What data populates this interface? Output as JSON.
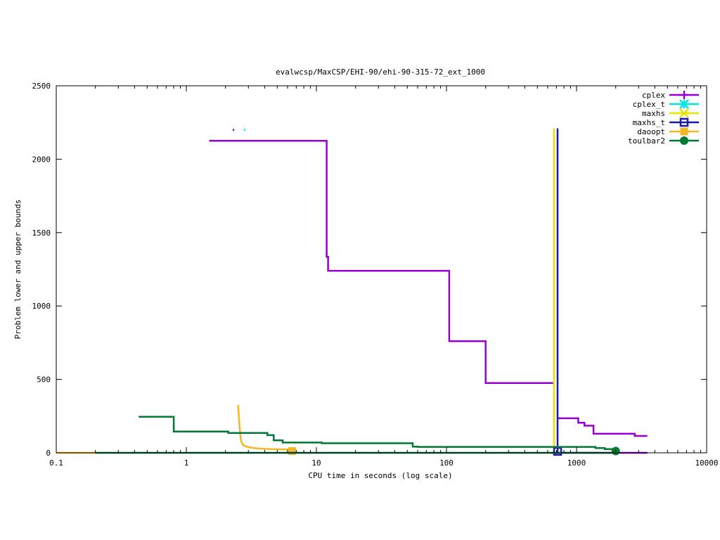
{
  "chart_data": {
    "type": "line",
    "title": "evalwcsp/MaxCSP/EHI-90/ehi-90-315-72_ext_1000",
    "xlabel": "CPU time in seconds (log scale)",
    "ylabel": "Problem lower and upper bounds",
    "x_scale": "log",
    "xlim": [
      0.1,
      10000
    ],
    "ylim": [
      0,
      2500
    ],
    "x_ticks": [
      {
        "value": 0.1,
        "label": "0.1"
      },
      {
        "value": 1,
        "label": "1"
      },
      {
        "value": 10,
        "label": "10"
      },
      {
        "value": 100,
        "label": "100"
      },
      {
        "value": 1000,
        "label": "1000"
      },
      {
        "value": 10000,
        "label": "10000"
      }
    ],
    "y_ticks": [
      {
        "value": 0,
        "label": "0"
      },
      {
        "value": 500,
        "label": "500"
      },
      {
        "value": 1000,
        "label": "1000"
      },
      {
        "value": 1500,
        "label": "1500"
      },
      {
        "value": 2000,
        "label": "2000"
      },
      {
        "value": 2500,
        "label": "2500"
      }
    ],
    "grid": false,
    "legend_position": "top-right",
    "series": [
      {
        "name": "cplex",
        "color": "#9400d3",
        "marker": "plus",
        "lines": [
          [
            [
              1.5,
              2125
            ],
            [
              12,
              2125
            ],
            [
              12,
              1335
            ],
            [
              12.3,
              1335
            ],
            [
              12.3,
              1240
            ],
            [
              105,
              1240
            ],
            [
              105,
              760
            ],
            [
              200,
              760
            ],
            [
              200,
              475
            ],
            [
              680,
              475
            ]
          ],
          [
            [
              715,
              235
            ],
            [
              1030,
              235
            ],
            [
              1030,
              205
            ],
            [
              1150,
              205
            ],
            [
              1150,
              185
            ],
            [
              1350,
              185
            ],
            [
              1350,
              130
            ],
            [
              2800,
              130
            ],
            [
              2800,
              115
            ],
            [
              3500,
              115
            ]
          ],
          [
            [
              650,
              0
            ],
            [
              3500,
              0
            ]
          ]
        ],
        "points": [
          [
            2.3,
            2200
          ]
        ]
      },
      {
        "name": "cplex_t",
        "color": "#00e5e5",
        "marker": "cross",
        "lines": [],
        "points": [
          [
            2.8,
            2200
          ]
        ]
      },
      {
        "name": "maxhs",
        "color": "#e5e500",
        "marker": "x",
        "lines": [
          [
            [
              670,
              2210
            ],
            [
              670,
              0
            ]
          ]
        ],
        "points": []
      },
      {
        "name": "maxhs_t",
        "color": "#1a1aaa",
        "marker": "square",
        "lines": [
          [
            [
              715,
              2210
            ],
            [
              715,
              0
            ]
          ]
        ],
        "points": [
          [
            715,
            10
          ]
        ]
      },
      {
        "name": "daoopt",
        "color": "#f5b623",
        "marker": "filled-square",
        "lines": [
          [
            [
              2.5,
              325
            ],
            [
              2.55,
              210
            ],
            [
              2.6,
              120
            ],
            [
              2.65,
              75
            ],
            [
              2.75,
              50
            ],
            [
              3.0,
              38
            ],
            [
              3.5,
              30
            ],
            [
              4.5,
              25
            ],
            [
              6.5,
              22
            ]
          ],
          [
            [
              0.1,
              0
            ],
            [
              0.2,
              0
            ]
          ]
        ],
        "points": [
          [
            6.5,
            12
          ]
        ]
      },
      {
        "name": "toulbar2",
        "color": "#007a33",
        "marker": "filled-circle",
        "lines": [
          [
            [
              0.43,
              245
            ],
            [
              0.8,
              245
            ],
            [
              0.8,
              145
            ],
            [
              2.1,
              145
            ],
            [
              2.1,
              135
            ],
            [
              4.2,
              135
            ],
            [
              4.2,
              120
            ],
            [
              4.7,
              120
            ],
            [
              4.7,
              85
            ],
            [
              5.5,
              85
            ],
            [
              5.5,
              70
            ],
            [
              11,
              70
            ],
            [
              11,
              65
            ],
            [
              55,
              65
            ],
            [
              55,
              42
            ],
            [
              60,
              42
            ],
            [
              60,
              40
            ],
            [
              1400,
              40
            ],
            [
              1400,
              32
            ],
            [
              1650,
              32
            ],
            [
              1650,
              25
            ],
            [
              2000,
              25
            ]
          ],
          [
            [
              0.2,
              0
            ],
            [
              2000,
              0
            ]
          ]
        ],
        "points": [
          [
            2000,
            12
          ]
        ]
      }
    ]
  }
}
